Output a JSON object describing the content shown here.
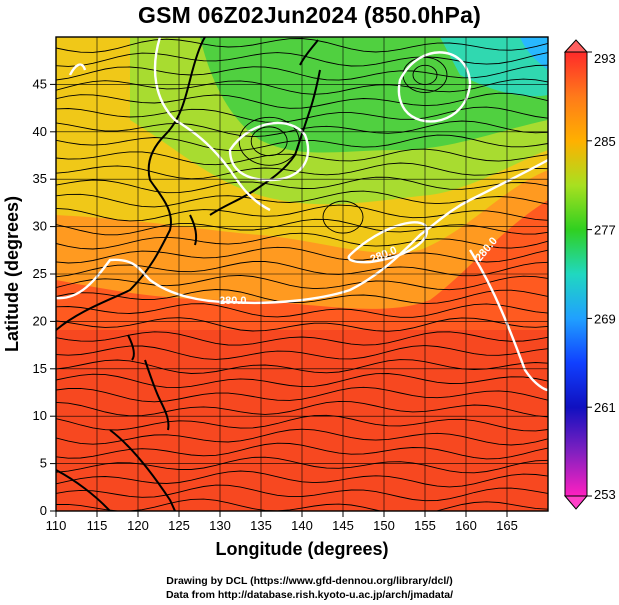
{
  "title": "GSM 06Z02Jun2024 (850.0hPa)",
  "map": {
    "x_axis": {
      "label": "Longitude (degrees)",
      "ticks": [
        "110",
        "115",
        "120",
        "125",
        "130",
        "135",
        "140",
        "145",
        "150",
        "155",
        "160",
        "165"
      ],
      "range": [
        110,
        170
      ]
    },
    "y_axis": {
      "label": "Latitude  (degrees)",
      "ticks": [
        "0",
        "5",
        "10",
        "15",
        "20",
        "25",
        "30",
        "35",
        "40",
        "45"
      ],
      "range": [
        0,
        50
      ]
    },
    "shading_variable": "temperature",
    "overlay": "wind streamlines",
    "contour_labels": [
      "280.0",
      "280.0",
      "280.0"
    ]
  },
  "colorbar": {
    "labels": [
      "293",
      "285",
      "277",
      "269",
      "261",
      "253"
    ],
    "min": 253,
    "max": 293,
    "colors": [
      "#ff2a2a",
      "#ff7a1a",
      "#ffb000",
      "#a8e020",
      "#30d020",
      "#20d8c0",
      "#20a0ff",
      "#1040ff",
      "#1010c0",
      "#8020c0",
      "#ff20c0"
    ]
  },
  "credits": {
    "line1": "Drawing by DCL (https://www.gfd-dennou.org/library/dcl/)",
    "line2": "Data from http://database.rish.kyoto-u.ac.jp/arch/jmadata/"
  }
}
